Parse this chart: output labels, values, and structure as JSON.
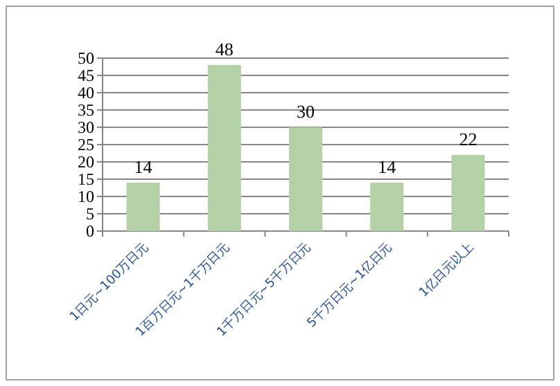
{
  "chart_data": {
    "type": "bar",
    "categories": [
      "1日元~100万日元",
      "1百万日元~1千万日元",
      "1千万日元~5千万日元",
      "5千万日元~1亿日元",
      "1亿日元以上"
    ],
    "values": [
      14,
      48,
      30,
      14,
      22
    ],
    "color": "#b3d1a4",
    "ylim": [
      0,
      50
    ],
    "yticks": [
      0,
      5,
      10,
      15,
      20,
      25,
      30,
      35,
      40,
      45,
      50
    ],
    "grid": "y",
    "data_labels": true
  }
}
